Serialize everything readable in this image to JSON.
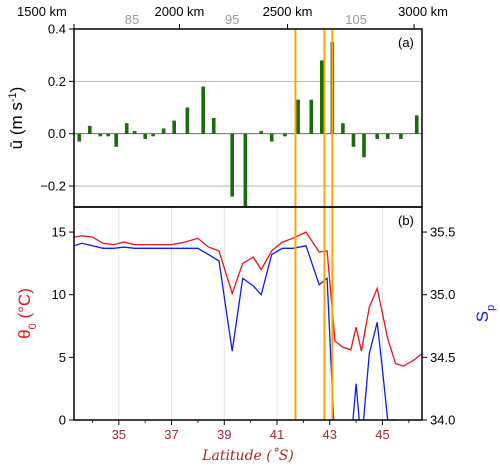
{
  "chart_data": [
    {
      "panel": "(a)",
      "type": "bar",
      "ylabel_main": "ū (m s",
      "ylabel_exp": "-1",
      "ylabel_close": ")",
      "ylim": [
        -0.28,
        0.4
      ],
      "yticks": [
        -0.2,
        0.0,
        0.2,
        0.4
      ],
      "ytick_labels": [
        "−0.2",
        "0.0",
        "0.2",
        "0.4"
      ],
      "xlim": [
        33.3,
        46.5
      ],
      "top_axis_distance_ticks": [
        {
          "lat": 33.3,
          "label": "1500 km"
        },
        {
          "lat": 37.3,
          "label": "2000 km"
        },
        {
          "lat": 41.4,
          "label": "2500 km"
        },
        {
          "lat": 46.2,
          "label": "3000 km"
        }
      ],
      "top_axis_longitude_ticks": [
        {
          "lat": 35.5,
          "label": "85"
        },
        {
          "lat": 39.3,
          "label": "95"
        },
        {
          "lat": 44.0,
          "label": "105"
        }
      ],
      "bar_color": "#1a6b0a",
      "gridlines": [
        -0.2,
        0.2
      ],
      "bars": [
        {
          "x": 33.5,
          "value": -0.03
        },
        {
          "x": 33.9,
          "value": 0.03
        },
        {
          "x": 34.3,
          "value": -0.01
        },
        {
          "x": 34.6,
          "value": -0.01
        },
        {
          "x": 34.9,
          "value": -0.05
        },
        {
          "x": 35.3,
          "value": 0.04
        },
        {
          "x": 35.6,
          "value": 0.01
        },
        {
          "x": 36.0,
          "value": -0.02
        },
        {
          "x": 36.3,
          "value": -0.01
        },
        {
          "x": 36.7,
          "value": 0.02
        },
        {
          "x": 37.1,
          "value": 0.05
        },
        {
          "x": 37.6,
          "value": 0.1
        },
        {
          "x": 38.2,
          "value": 0.18
        },
        {
          "x": 38.6,
          "value": 0.06
        },
        {
          "x": 39.3,
          "value": -0.24
        },
        {
          "x": 39.8,
          "value": -0.28
        },
        {
          "x": 40.4,
          "value": 0.01
        },
        {
          "x": 40.8,
          "value": -0.03
        },
        {
          "x": 41.3,
          "value": -0.01
        },
        {
          "x": 41.8,
          "value": 0.13
        },
        {
          "x": 42.3,
          "value": 0.13
        },
        {
          "x": 42.7,
          "value": 0.28
        },
        {
          "x": 43.1,
          "value": 0.35
        },
        {
          "x": 43.5,
          "value": 0.04
        },
        {
          "x": 43.9,
          "value": -0.05
        },
        {
          "x": 44.3,
          "value": -0.09
        },
        {
          "x": 44.8,
          "value": -0.02
        },
        {
          "x": 45.2,
          "value": -0.02
        },
        {
          "x": 45.7,
          "value": -0.02
        },
        {
          "x": 46.3,
          "value": 0.07
        }
      ]
    },
    {
      "panel": "(b)",
      "type": "line",
      "xlabel": "Latitude (˚S)",
      "xlim": [
        33.3,
        46.5
      ],
      "xticks": [
        35,
        37,
        39,
        41,
        43,
        45
      ],
      "ylabel_left_main": "θ",
      "ylabel_left_sub": "0",
      "ylabel_left_unit": " (°C)",
      "ylim_left": [
        0,
        17
      ],
      "yticks_left": [
        0,
        5,
        10,
        15
      ],
      "ylabel_right_main": "S",
      "ylabel_right_sub": "p",
      "ylim_right": [
        34.0,
        35.7
      ],
      "yticks_right": [
        34.0,
        34.5,
        35.0,
        35.5
      ],
      "ytick_labels_right": [
        "34.0",
        "34.5",
        "35.0",
        "35.5"
      ],
      "series": [
        {
          "color": "#e8141e",
          "axis": "left",
          "x": [
            33.3,
            33.6,
            34.0,
            34.4,
            34.8,
            35.2,
            35.6,
            36.0,
            36.5,
            37.0,
            37.5,
            38.0,
            38.4,
            38.8,
            39.3,
            39.7,
            40.1,
            40.4,
            40.8,
            41.2,
            41.6,
            42.1,
            42.6,
            42.9,
            43.2,
            43.5,
            43.8,
            44.0,
            44.2,
            44.5,
            44.8,
            45.2,
            45.5,
            45.8,
            46.2,
            46.5
          ],
          "y": [
            14.6,
            14.7,
            14.6,
            14.1,
            14.0,
            14.2,
            14.0,
            14.0,
            14.0,
            14.0,
            14.2,
            14.5,
            13.8,
            13.5,
            10.1,
            12.5,
            13.0,
            12.0,
            13.5,
            14.2,
            14.5,
            15.0,
            13.4,
            13.5,
            6.3,
            5.8,
            5.6,
            7.4,
            5.5,
            9.0,
            10.5,
            6.5,
            4.5,
            4.3,
            4.8,
            5.3
          ]
        },
        {
          "color": "#0a1ee6",
          "axis": "right",
          "x": [
            33.3,
            33.6,
            34.0,
            34.4,
            34.8,
            35.2,
            35.6,
            36.0,
            36.5,
            37.0,
            37.5,
            38.0,
            38.4,
            38.8,
            39.3,
            39.7,
            40.1,
            40.4,
            40.8,
            41.2,
            41.6,
            42.1,
            42.6,
            42.9,
            43.15,
            43.5,
            43.8,
            44.0,
            44.2,
            44.5,
            44.8,
            45.0,
            45.2,
            45.5
          ],
          "y": [
            35.39,
            35.41,
            35.39,
            35.37,
            35.37,
            35.38,
            35.37,
            35.37,
            35.37,
            35.37,
            35.37,
            35.37,
            35.32,
            35.27,
            34.55,
            35.13,
            35.07,
            35.0,
            35.32,
            35.37,
            35.37,
            35.39,
            35.08,
            35.13,
            34.0,
            33.8,
            33.8,
            34.29,
            33.8,
            34.53,
            34.78,
            34.4,
            34.0,
            34.0
          ]
        }
      ]
    }
  ],
  "orange_lines_lat": [
    41.7,
    42.8,
    43.1
  ],
  "colors": {
    "bars": "#1a6b0a",
    "theta": "#e8141e",
    "salinity": "#0a1ee6",
    "orange": "#ffa500",
    "axis_red": "#a52a2a",
    "grid": "#c8c8c8"
  }
}
